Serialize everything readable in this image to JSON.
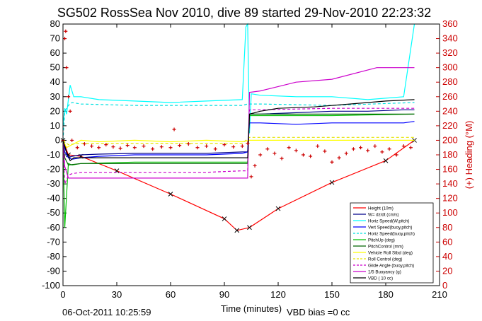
{
  "chart_data": {
    "type": "line",
    "title": "SG502 RossSea Nov 2010, dive 89 started 29-Nov-2010 22:23:32",
    "xlabel": "Time (minutes)",
    "ylabel_right": "(+) Heading (°M)",
    "footer_date": "06-Oct-2011 10:25:59",
    "footer_note": "VBD bias =0 cc",
    "xlim": [
      0,
      210
    ],
    "ylim": [
      -100,
      80
    ],
    "ylim_right": [
      0,
      360
    ],
    "x_ticks": [
      "0",
      "30",
      "60",
      "90",
      "120",
      "150",
      "180",
      "210"
    ],
    "y_ticks": [
      "80",
      "70",
      "60",
      "50",
      "40",
      "30",
      "20",
      "10",
      "0",
      "-10",
      "-20",
      "-30",
      "-40",
      "-50",
      "-60",
      "-70",
      "-80",
      "-90",
      "-100"
    ],
    "y_right_ticks": [
      "360",
      "340",
      "320",
      "300",
      "280",
      "260",
      "240",
      "220",
      "200",
      "180",
      "160",
      "140",
      "120",
      "100",
      "80",
      "60",
      "40",
      "20",
      "0"
    ],
    "colors": {
      "axis": "#000000",
      "right_axis": "#cc0000",
      "height": "#ff0000",
      "w": "#00008b",
      "horiz_speed_w": "#00ffff",
      "vert_speed": "#0000ff",
      "horiz_speed_buoy": "#00e0e0",
      "pitch_up": "#00c000",
      "pitch_control": "#006400",
      "roll_stbd": "#ffff00",
      "roll_control": "#e6e600",
      "glide_angle": "#cc00cc",
      "buoyancy": "#cc00cc",
      "vbd": "#000000",
      "heading": "#cc0000"
    },
    "series": [
      {
        "name": "Height (10m)",
        "color_key": "height",
        "x": [
          0,
          3,
          10,
          30,
          60,
          90,
          97,
          104,
          120,
          150,
          180,
          196
        ],
        "y": [
          0,
          -10,
          -11,
          -21,
          -37,
          -54,
          -62,
          -60,
          -47,
          -29,
          -14,
          0
        ]
      },
      {
        "name": "W= dz/dt (cm/s)",
        "color_key": "w",
        "x": [
          0,
          1,
          3,
          5,
          10,
          20,
          40,
          60,
          80,
          100,
          103,
          104,
          110,
          130,
          150,
          170,
          190,
          196
        ],
        "y": [
          0,
          -5,
          -12,
          -11,
          -10,
          -9.5,
          -9,
          -9,
          -9,
          -8,
          -8,
          18,
          18,
          19,
          20,
          20,
          21,
          21
        ]
      },
      {
        "name": "Horiz Speed(W,pitch)",
        "color_key": "horiz_speed_w",
        "x": [
          0,
          1,
          2,
          4,
          6,
          10,
          20,
          40,
          60,
          80,
          100,
          102,
          103,
          104,
          105,
          110,
          130,
          150,
          170,
          190,
          196
        ],
        "y": [
          10,
          22,
          18,
          38,
          30,
          30,
          28,
          27,
          26,
          27,
          28,
          78,
          80,
          5,
          32,
          31,
          30,
          30,
          28,
          30,
          80
        ]
      },
      {
        "name": "Vert Speed(buoy,pitch)",
        "color_key": "vert_speed",
        "x": [
          0,
          1,
          3,
          5,
          10,
          20,
          40,
          60,
          80,
          100,
          103,
          104,
          110,
          130,
          150,
          170,
          190,
          196
        ],
        "y": [
          0,
          -8,
          -12,
          -13,
          -12,
          -11,
          -10,
          -10,
          -10,
          -9,
          -8,
          12,
          12,
          11,
          12,
          12,
          12,
          13
        ]
      },
      {
        "name": "Horiz Speed(buoy,pitch)",
        "color_key": "horiz_speed_buoy",
        "x": [
          0,
          1,
          3,
          5,
          10,
          40,
          80,
          100,
          103,
          104,
          110,
          150,
          196
        ],
        "y": [
          0,
          20,
          24,
          26,
          25,
          24,
          24,
          24,
          25,
          25,
          25,
          24,
          26
        ]
      },
      {
        "name": "PitchUp (deg)",
        "color_key": "pitch_up",
        "x": [
          0,
          1,
          3,
          5,
          10,
          40,
          80,
          100,
          103,
          104,
          110,
          150,
          196
        ],
        "y": [
          0,
          -60,
          -16,
          -17,
          -16,
          -15,
          -15,
          -15,
          -15,
          17,
          17,
          17,
          18
        ]
      },
      {
        "name": "PitchControl (mm)",
        "color_key": "pitch_control",
        "x": [
          0,
          1,
          3,
          10,
          40,
          80,
          100,
          103,
          104,
          110,
          150,
          196
        ],
        "y": [
          0,
          -12,
          -17,
          -16,
          -16,
          -16,
          -16,
          -16,
          18,
          18,
          18,
          18
        ]
      },
      {
        "name": "Vehicle Roll Stbd (deg)",
        "color_key": "roll_stbd",
        "x": [
          0,
          2,
          5,
          10,
          20,
          40,
          60,
          80,
          100,
          104,
          110,
          150,
          196
        ],
        "y": [
          0,
          -5,
          -3,
          0,
          -1,
          0,
          -1,
          0,
          -1,
          0,
          0,
          0,
          0
        ]
      },
      {
        "name": "Roll Control (deg)",
        "color_key": "roll_control",
        "x": [
          0,
          3,
          10,
          40,
          80,
          100,
          104,
          110,
          150,
          196
        ],
        "y": [
          0,
          -3,
          -2,
          -2,
          -2,
          -2,
          2,
          2,
          2,
          2
        ]
      },
      {
        "name": "Glide Angle (buoy,pitch)",
        "color_key": "glide_angle",
        "x": [
          0,
          1,
          3,
          5,
          10,
          40,
          80,
          100,
          103,
          104,
          110,
          150,
          196
        ],
        "y": [
          0,
          -30,
          -24,
          -23,
          -22,
          -22,
          -22,
          -21,
          -21,
          21,
          21,
          22,
          22
        ]
      },
      {
        "name": "1/5 Buoyancy (g)",
        "color_key": "buoyancy",
        "x": [
          0,
          1,
          2,
          3,
          20,
          40,
          80,
          100,
          103,
          104,
          110,
          120,
          130,
          150,
          175,
          196
        ],
        "y": [
          0,
          -18,
          -22,
          -26,
          -26,
          -26,
          -26,
          -26,
          -26,
          33,
          34,
          37,
          40,
          42,
          50,
          50
        ]
      },
      {
        "name": "VBD ( 10 cc)",
        "color_key": "vbd",
        "x": [
          0,
          2,
          4,
          6,
          10,
          40,
          80,
          100,
          103,
          104,
          110,
          120,
          140,
          160,
          180,
          196
        ],
        "y": [
          0,
          -8,
          -14,
          -12,
          -12,
          -12,
          -12,
          -12,
          -12,
          18,
          20,
          22,
          23,
          25,
          27,
          28
        ]
      }
    ],
    "heading_points": {
      "name": "(+) Heading (°M)",
      "x": [
        0,
        1,
        1.5,
        2,
        3,
        4,
        5,
        8,
        12,
        16,
        20,
        24,
        28,
        32,
        36,
        40,
        45,
        50,
        55,
        60,
        62,
        65,
        70,
        75,
        80,
        85,
        90,
        95,
        100,
        103,
        105,
        107,
        110,
        114,
        118,
        122,
        126,
        130,
        134,
        138,
        142,
        146,
        150,
        154,
        158,
        162,
        166,
        170,
        174,
        178,
        182,
        186,
        190,
        194
      ],
      "y": [
        200,
        340,
        350,
        300,
        260,
        240,
        200,
        190,
        195,
        192,
        190,
        194,
        191,
        189,
        193,
        190,
        192,
        188,
        191,
        190,
        215,
        193,
        195,
        190,
        192,
        188,
        194,
        191,
        192,
        196,
        150,
        165,
        180,
        188,
        182,
        175,
        190,
        186,
        180,
        178,
        192,
        185,
        170,
        176,
        182,
        188,
        190,
        186,
        192,
        184,
        188,
        180,
        192,
        190
      ]
    },
    "legend_position": "bottom-right"
  }
}
